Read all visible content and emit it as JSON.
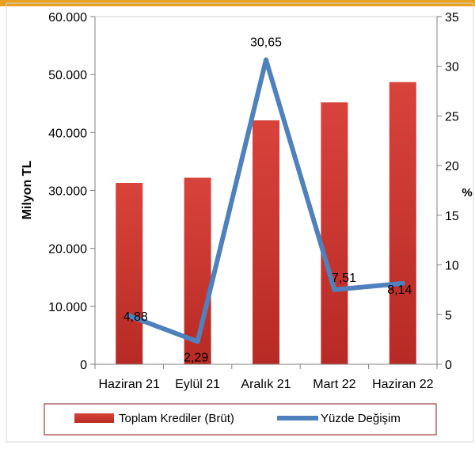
{
  "chart_data": {
    "type": "bar",
    "categories": [
      "Haziran 21",
      "Eylül 21",
      "Aralık 21",
      "Mart 22",
      "Haziran 22"
    ],
    "series": [
      {
        "name": "Toplam Krediler (Brüt)",
        "type": "bar",
        "axis": "left",
        "values": [
          31300,
          32200,
          42100,
          45200,
          48700
        ],
        "color": "#C0312B"
      },
      {
        "name": "Yüzde Değişim",
        "type": "line",
        "axis": "right",
        "values": [
          4.88,
          2.29,
          30.65,
          7.51,
          8.14
        ],
        "labels": [
          "4,88",
          "2,29",
          "30,65",
          "7,51",
          "8,14"
        ],
        "color": "#4F81BD"
      }
    ],
    "ylabel": "Milyon TL",
    "y2label": "%",
    "ylim": [
      0,
      60000
    ],
    "y2lim": [
      0,
      35
    ],
    "yticks": [
      "0",
      "10.000",
      "20.000",
      "30.000",
      "40.000",
      "50.000",
      "60.000"
    ],
    "y2ticks": [
      "0",
      "5",
      "10",
      "15",
      "20",
      "25",
      "30",
      "35"
    ],
    "legend_position": "bottom"
  }
}
